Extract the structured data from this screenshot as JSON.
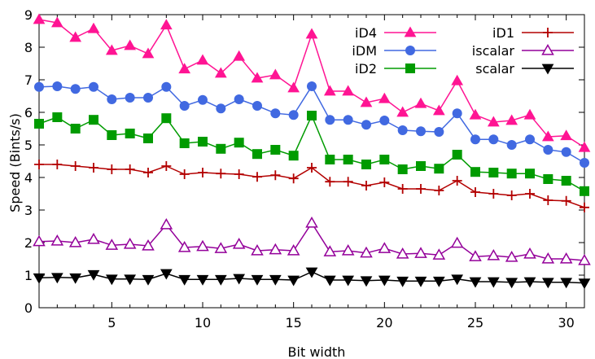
{
  "chart_data": {
    "type": "line",
    "xlabel": "Bit width",
    "ylabel": "Speed (Bints/s)",
    "xlim": [
      1,
      31
    ],
    "ylim": [
      0,
      9
    ],
    "xticks": [
      5,
      10,
      15,
      20,
      25,
      30
    ],
    "yticks": [
      0,
      1,
      2,
      3,
      4,
      5,
      6,
      7,
      8,
      9
    ],
    "grid": false,
    "legend_position": "top-right",
    "x": [
      1,
      2,
      3,
      4,
      5,
      6,
      7,
      8,
      9,
      10,
      11,
      12,
      13,
      14,
      15,
      16,
      17,
      18,
      19,
      20,
      21,
      22,
      23,
      24,
      25,
      26,
      27,
      28,
      29,
      30,
      31
    ],
    "series": [
      {
        "name": "iD4",
        "color": "#ff1493",
        "marker": "triangle-filled",
        "values": [
          8.85,
          8.75,
          8.3,
          8.57,
          7.9,
          8.05,
          7.8,
          8.68,
          7.33,
          7.6,
          7.2,
          7.72,
          7.05,
          7.15,
          6.75,
          8.4,
          6.65,
          6.65,
          6.3,
          6.42,
          6.0,
          6.27,
          6.05,
          6.97,
          5.92,
          5.7,
          5.75,
          5.92,
          5.25,
          5.28,
          4.92
        ]
      },
      {
        "name": "iDM",
        "color": "#4169e1",
        "marker": "circle-filled",
        "values": [
          6.78,
          6.8,
          6.72,
          6.78,
          6.4,
          6.45,
          6.45,
          6.78,
          6.2,
          6.38,
          6.12,
          6.4,
          6.2,
          5.97,
          5.92,
          6.8,
          5.77,
          5.77,
          5.62,
          5.75,
          5.45,
          5.42,
          5.4,
          5.97,
          5.17,
          5.17,
          5.0,
          5.17,
          4.85,
          4.78,
          4.45
        ]
      },
      {
        "name": "iD2",
        "color": "#009b00",
        "marker": "square-filled",
        "values": [
          5.65,
          5.85,
          5.5,
          5.77,
          5.3,
          5.35,
          5.2,
          5.82,
          5.05,
          5.1,
          4.88,
          5.07,
          4.72,
          4.85,
          4.67,
          5.9,
          4.55,
          4.55,
          4.4,
          4.55,
          4.25,
          4.35,
          4.27,
          4.7,
          4.17,
          4.15,
          4.12,
          4.12,
          3.95,
          3.9,
          3.58
        ]
      },
      {
        "name": "iD1",
        "color": "#b30000",
        "marker": "plus",
        "values": [
          4.4,
          4.4,
          4.35,
          4.3,
          4.25,
          4.25,
          4.15,
          4.35,
          4.1,
          4.15,
          4.12,
          4.1,
          4.02,
          4.07,
          3.97,
          4.3,
          3.87,
          3.87,
          3.75,
          3.85,
          3.65,
          3.65,
          3.6,
          3.9,
          3.55,
          3.5,
          3.45,
          3.5,
          3.3,
          3.28,
          3.08
        ]
      },
      {
        "name": "iscalar",
        "color": "#94009a",
        "marker": "triangle-open",
        "values": [
          2.03,
          2.05,
          2.0,
          2.1,
          1.92,
          1.95,
          1.9,
          2.55,
          1.85,
          1.88,
          1.82,
          1.95,
          1.75,
          1.78,
          1.75,
          2.6,
          1.72,
          1.75,
          1.68,
          1.82,
          1.65,
          1.67,
          1.62,
          1.98,
          1.57,
          1.6,
          1.55,
          1.65,
          1.5,
          1.5,
          1.45
        ]
      },
      {
        "name": "scalar",
        "color": "#000000",
        "marker": "triangle-down-filled",
        "values": [
          0.92,
          0.93,
          0.92,
          1.02,
          0.88,
          0.88,
          0.87,
          1.05,
          0.87,
          0.87,
          0.87,
          0.9,
          0.87,
          0.87,
          0.85,
          1.1,
          0.85,
          0.85,
          0.83,
          0.85,
          0.82,
          0.82,
          0.82,
          0.88,
          0.8,
          0.8,
          0.78,
          0.8,
          0.78,
          0.78,
          0.76
        ]
      }
    ]
  }
}
